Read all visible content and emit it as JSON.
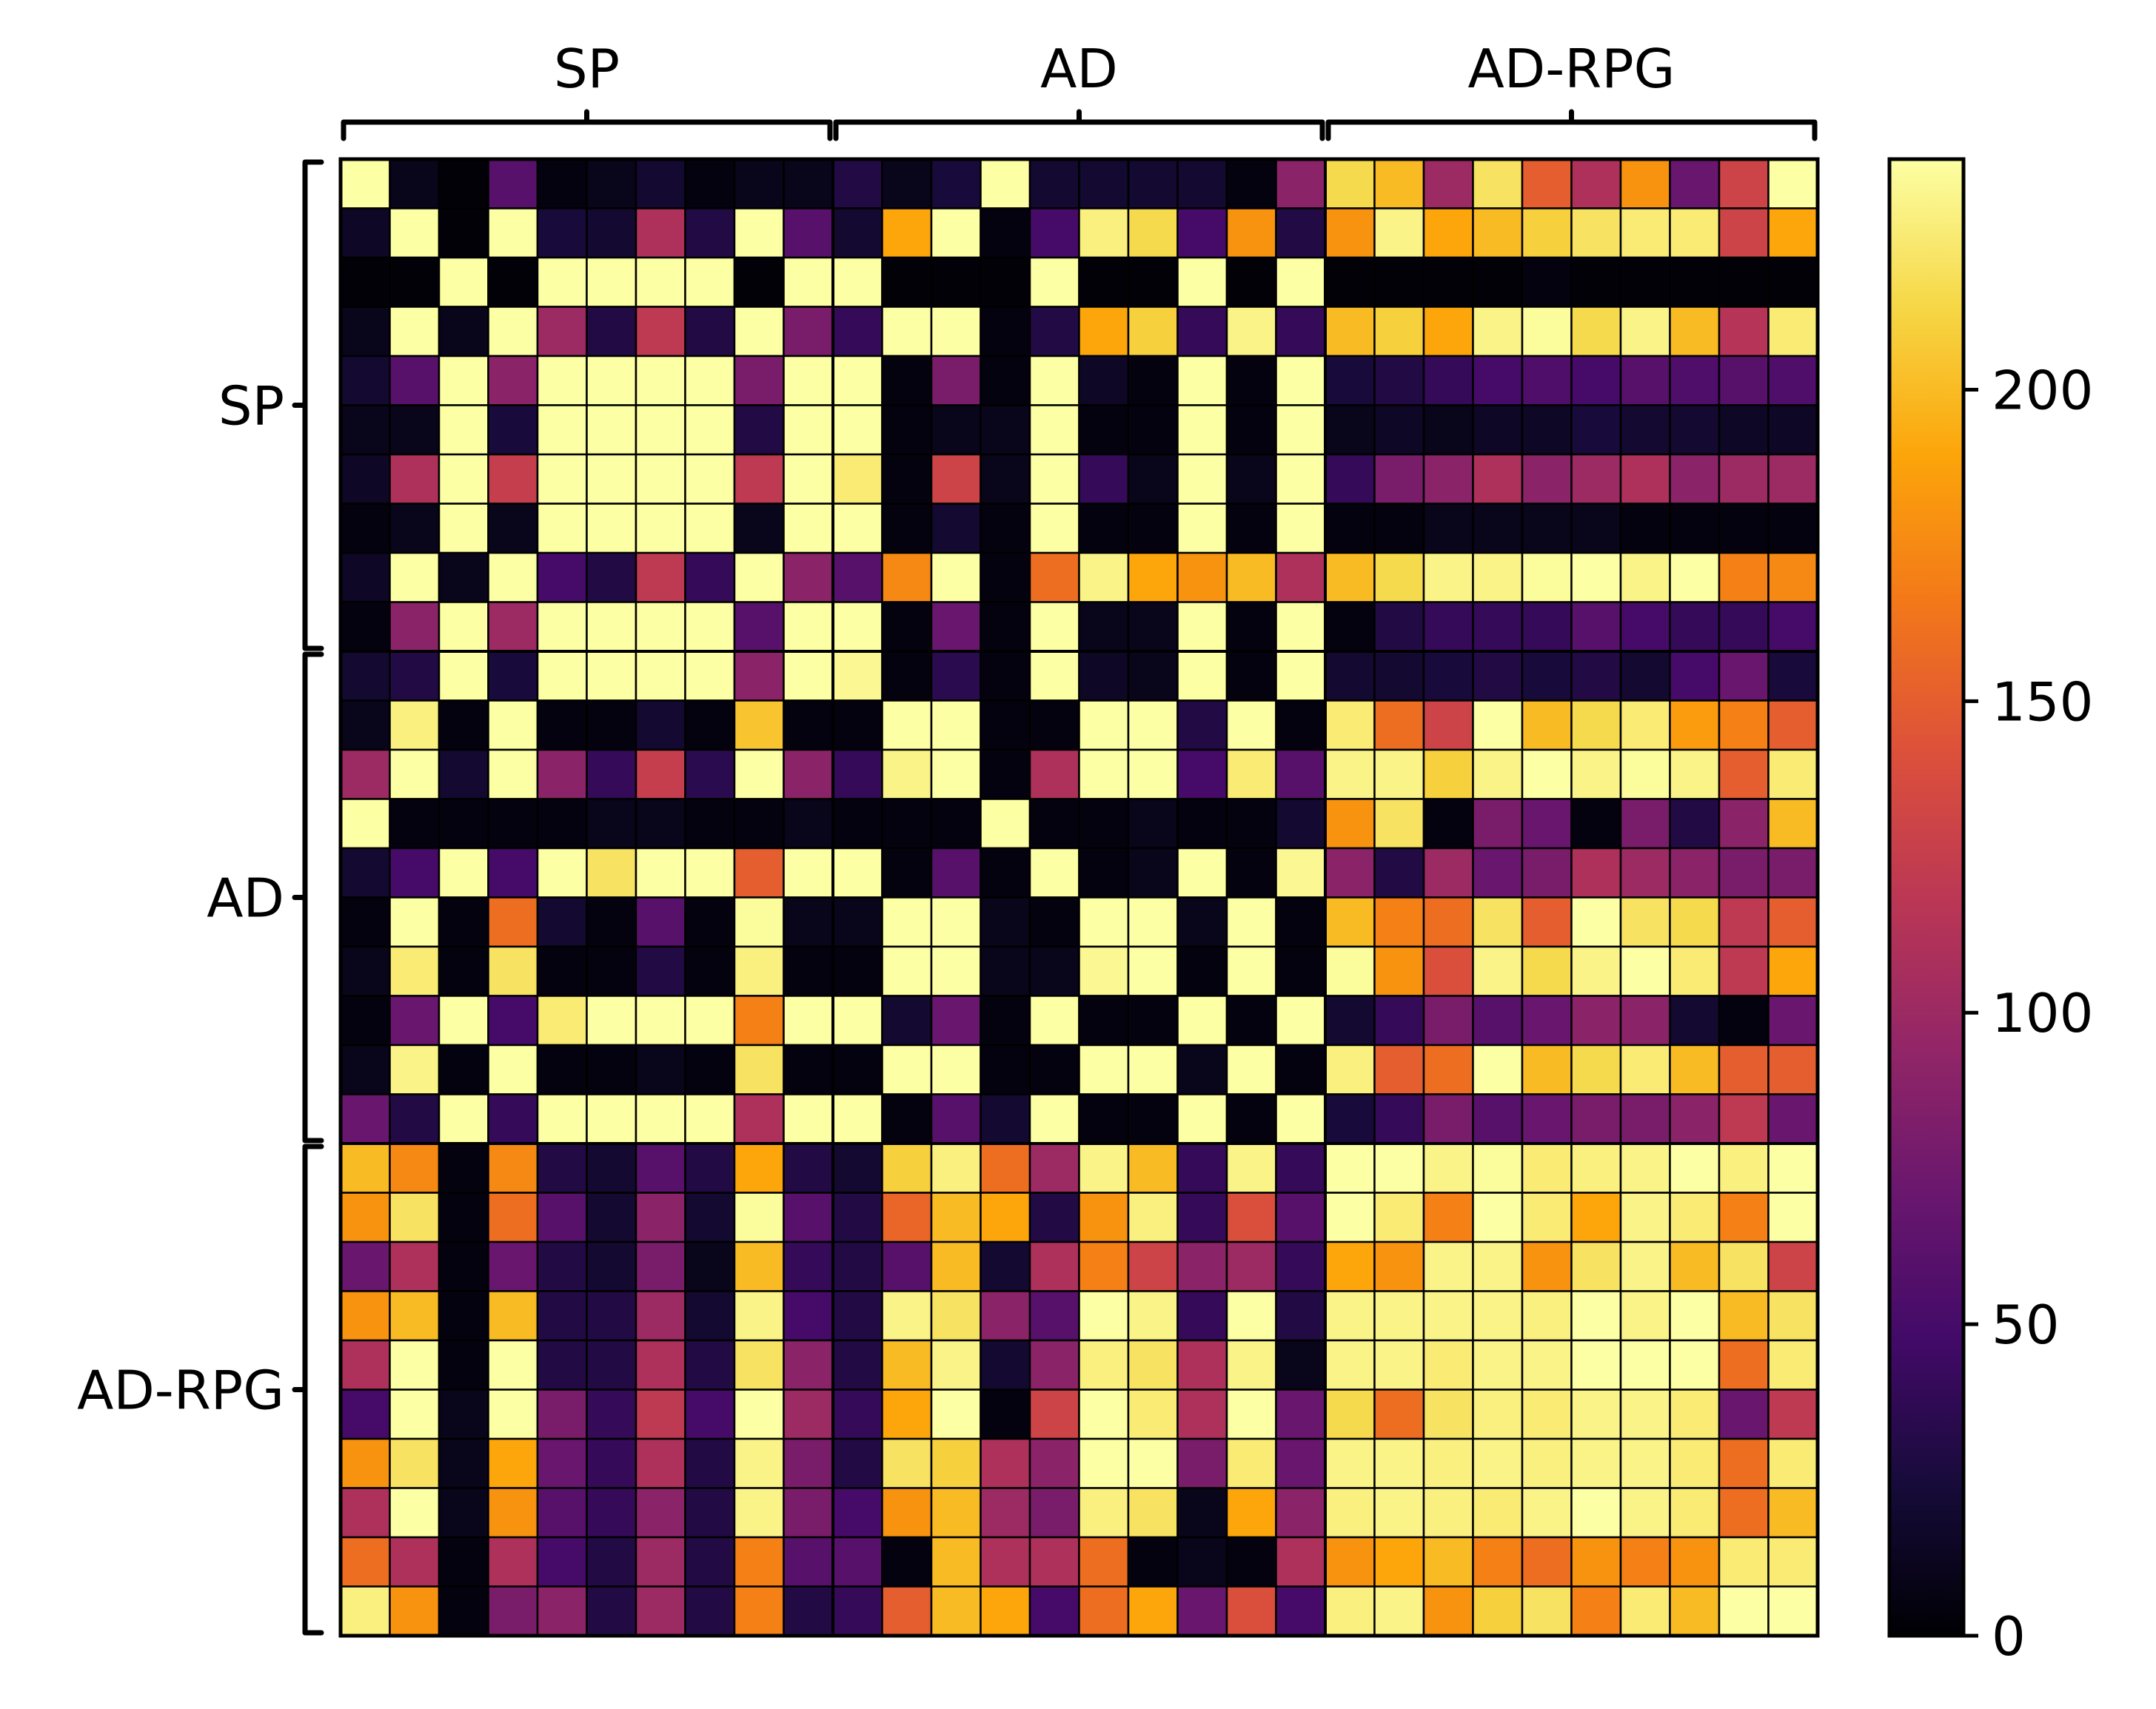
{
  "chart_data": {
    "type": "heatmap",
    "title": "",
    "xlabel": "",
    "ylabel": "",
    "colormap": "inferno",
    "vmin": 0,
    "vmax": 237,
    "colorbar_ticks": [
      0,
      50,
      100,
      150,
      200
    ],
    "groups": [
      {
        "label": "SP",
        "start": 0,
        "end": 10
      },
      {
        "label": "AD",
        "start": 10,
        "end": 20
      },
      {
        "label": "AD-RPG",
        "start": 20,
        "end": 30
      }
    ],
    "grid": true,
    "matrix": [
      [
        237,
        10,
        2,
        60,
        5,
        10,
        20,
        5,
        10,
        10,
        30,
        10,
        25,
        237,
        20,
        20,
        20,
        20,
        5,
        90,
        215,
        200,
        100,
        220,
        150,
        110,
        180,
        70,
        130,
        237
      ],
      [
        15,
        237,
        2,
        237,
        25,
        20,
        110,
        30,
        237,
        60,
        20,
        190,
        237,
        5,
        50,
        228,
        215,
        50,
        180,
        30,
        180,
        230,
        190,
        200,
        210,
        220,
        225,
        225,
        130,
        190
      ],
      [
        2,
        2,
        237,
        2,
        237,
        237,
        237,
        237,
        2,
        237,
        237,
        2,
        2,
        2,
        237,
        2,
        2,
        237,
        2,
        237,
        2,
        2,
        2,
        2,
        5,
        2,
        2,
        2,
        2,
        2
      ],
      [
        10,
        237,
        10,
        237,
        100,
        30,
        120,
        30,
        237,
        80,
        40,
        237,
        237,
        5,
        30,
        190,
        210,
        40,
        230,
        40,
        200,
        210,
        190,
        230,
        235,
        215,
        230,
        200,
        115,
        225
      ],
      [
        20,
        60,
        237,
        90,
        237,
        237,
        237,
        237,
        80,
        237,
        237,
        5,
        80,
        5,
        237,
        15,
        5,
        237,
        5,
        237,
        25,
        30,
        40,
        50,
        55,
        50,
        60,
        55,
        60,
        55
      ],
      [
        10,
        10,
        237,
        25,
        237,
        237,
        237,
        237,
        30,
        237,
        237,
        5,
        10,
        10,
        237,
        5,
        5,
        237,
        5,
        237,
        10,
        15,
        10,
        15,
        15,
        25,
        20,
        20,
        15,
        15
      ],
      [
        15,
        110,
        237,
        125,
        237,
        237,
        237,
        237,
        120,
        237,
        225,
        5,
        130,
        10,
        237,
        40,
        10,
        237,
        10,
        237,
        40,
        80,
        90,
        110,
        90,
        100,
        110,
        90,
        100,
        100
      ],
      [
        5,
        10,
        237,
        10,
        237,
        237,
        237,
        237,
        10,
        237,
        237,
        5,
        20,
        5,
        237,
        5,
        5,
        237,
        5,
        237,
        5,
        5,
        10,
        10,
        10,
        10,
        5,
        5,
        5,
        5
      ],
      [
        15,
        237,
        10,
        237,
        50,
        30,
        120,
        40,
        237,
        90,
        60,
        175,
        237,
        5,
        160,
        230,
        190,
        180,
        200,
        110,
        200,
        215,
        230,
        230,
        235,
        237,
        230,
        237,
        170,
        175
      ],
      [
        5,
        90,
        237,
        100,
        237,
        237,
        237,
        237,
        60,
        237,
        237,
        5,
        70,
        5,
        237,
        10,
        10,
        237,
        5,
        237,
        5,
        30,
        40,
        40,
        40,
        60,
        50,
        40,
        40,
        50
      ],
      [
        20,
        30,
        237,
        25,
        237,
        237,
        237,
        237,
        90,
        237,
        233,
        5,
        35,
        5,
        237,
        15,
        10,
        237,
        5,
        237,
        20,
        20,
        25,
        30,
        25,
        30,
        20,
        50,
        70,
        25
      ],
      [
        10,
        228,
        5,
        237,
        5,
        5,
        20,
        5,
        205,
        5,
        5,
        237,
        237,
        5,
        5,
        237,
        237,
        30,
        237,
        5,
        225,
        160,
        130,
        237,
        200,
        215,
        225,
        185,
        170,
        150
      ],
      [
        100,
        237,
        20,
        237,
        90,
        40,
        125,
        35,
        237,
        90,
        40,
        230,
        237,
        5,
        110,
        237,
        237,
        50,
        225,
        60,
        230,
        230,
        210,
        230,
        237,
        230,
        235,
        230,
        150,
        225
      ],
      [
        237,
        5,
        5,
        5,
        5,
        10,
        10,
        5,
        5,
        10,
        5,
        5,
        5,
        237,
        5,
        5,
        10,
        5,
        5,
        20,
        180,
        220,
        5,
        80,
        70,
        5,
        80,
        30,
        90,
        200
      ],
      [
        20,
        50,
        237,
        50,
        237,
        220,
        237,
        237,
        150,
        237,
        237,
        5,
        60,
        5,
        237,
        5,
        10,
        237,
        5,
        233,
        90,
        30,
        100,
        70,
        80,
        110,
        100,
        90,
        80,
        80
      ],
      [
        5,
        237,
        5,
        160,
        20,
        5,
        60,
        5,
        235,
        10,
        10,
        237,
        237,
        10,
        5,
        237,
        237,
        10,
        237,
        5,
        200,
        170,
        160,
        220,
        150,
        237,
        220,
        215,
        120,
        150
      ],
      [
        10,
        225,
        5,
        220,
        5,
        5,
        30,
        5,
        228,
        5,
        5,
        237,
        237,
        10,
        10,
        233,
        237,
        5,
        237,
        5,
        235,
        180,
        140,
        230,
        215,
        230,
        237,
        225,
        120,
        190
      ],
      [
        5,
        70,
        237,
        50,
        225,
        237,
        237,
        237,
        170,
        237,
        237,
        20,
        70,
        5,
        237,
        5,
        5,
        237,
        5,
        237,
        20,
        40,
        80,
        60,
        70,
        90,
        90,
        20,
        5,
        70
      ],
      [
        10,
        230,
        5,
        237,
        5,
        5,
        10,
        5,
        220,
        5,
        5,
        237,
        237,
        5,
        5,
        237,
        237,
        10,
        237,
        5,
        228,
        150,
        160,
        237,
        200,
        215,
        225,
        200,
        150,
        150
      ],
      [
        70,
        30,
        237,
        40,
        237,
        237,
        237,
        237,
        110,
        237,
        237,
        5,
        60,
        20,
        237,
        5,
        5,
        237,
        5,
        237,
        25,
        40,
        80,
        60,
        70,
        80,
        80,
        90,
        120,
        70
      ],
      [
        200,
        175,
        5,
        175,
        30,
        20,
        60,
        30,
        190,
        30,
        20,
        210,
        228,
        160,
        100,
        230,
        200,
        40,
        230,
        40,
        237,
        237,
        230,
        235,
        225,
        228,
        230,
        237,
        228,
        237
      ],
      [
        180,
        220,
        5,
        160,
        60,
        20,
        90,
        20,
        235,
        60,
        30,
        155,
        200,
        190,
        30,
        180,
        228,
        40,
        140,
        60,
        237,
        225,
        170,
        237,
        225,
        190,
        230,
        225,
        170,
        237
      ],
      [
        70,
        110,
        5,
        70,
        30,
        20,
        80,
        10,
        200,
        40,
        30,
        60,
        200,
        20,
        110,
        170,
        130,
        90,
        100,
        40,
        190,
        180,
        230,
        230,
        180,
        220,
        230,
        200,
        220,
        130
      ],
      [
        180,
        200,
        5,
        200,
        30,
        30,
        100,
        20,
        230,
        50,
        30,
        230,
        220,
        90,
        60,
        237,
        230,
        40,
        237,
        30,
        230,
        230,
        230,
        230,
        228,
        237,
        230,
        237,
        200,
        220
      ],
      [
        110,
        237,
        5,
        237,
        30,
        30,
        110,
        30,
        220,
        90,
        30,
        200,
        230,
        20,
        90,
        228,
        220,
        110,
        230,
        10,
        230,
        230,
        225,
        230,
        230,
        237,
        237,
        237,
        160,
        225
      ],
      [
        50,
        237,
        10,
        237,
        80,
        40,
        120,
        50,
        237,
        100,
        40,
        190,
        237,
        5,
        130,
        237,
        225,
        110,
        237,
        70,
        215,
        160,
        220,
        228,
        225,
        230,
        230,
        225,
        70,
        120
      ],
      [
        180,
        220,
        10,
        190,
        70,
        40,
        110,
        30,
        230,
        80,
        30,
        220,
        210,
        110,
        90,
        237,
        237,
        80,
        225,
        70,
        230,
        230,
        228,
        230,
        228,
        230,
        230,
        225,
        160,
        225
      ],
      [
        110,
        237,
        10,
        180,
        60,
        40,
        90,
        30,
        230,
        80,
        50,
        180,
        200,
        100,
        80,
        228,
        220,
        10,
        190,
        90,
        228,
        230,
        228,
        225,
        230,
        237,
        230,
        225,
        160,
        200
      ],
      [
        160,
        110,
        5,
        110,
        50,
        30,
        100,
        30,
        170,
        60,
        60,
        5,
        200,
        110,
        110,
        160,
        5,
        10,
        5,
        110,
        180,
        190,
        200,
        170,
        160,
        180,
        170,
        180,
        225,
        225
      ],
      [
        228,
        180,
        5,
        80,
        90,
        30,
        100,
        30,
        170,
        30,
        40,
        150,
        200,
        190,
        50,
        160,
        190,
        70,
        140,
        50,
        228,
        230,
        180,
        210,
        220,
        170,
        225,
        200,
        237,
        237
      ]
    ]
  }
}
